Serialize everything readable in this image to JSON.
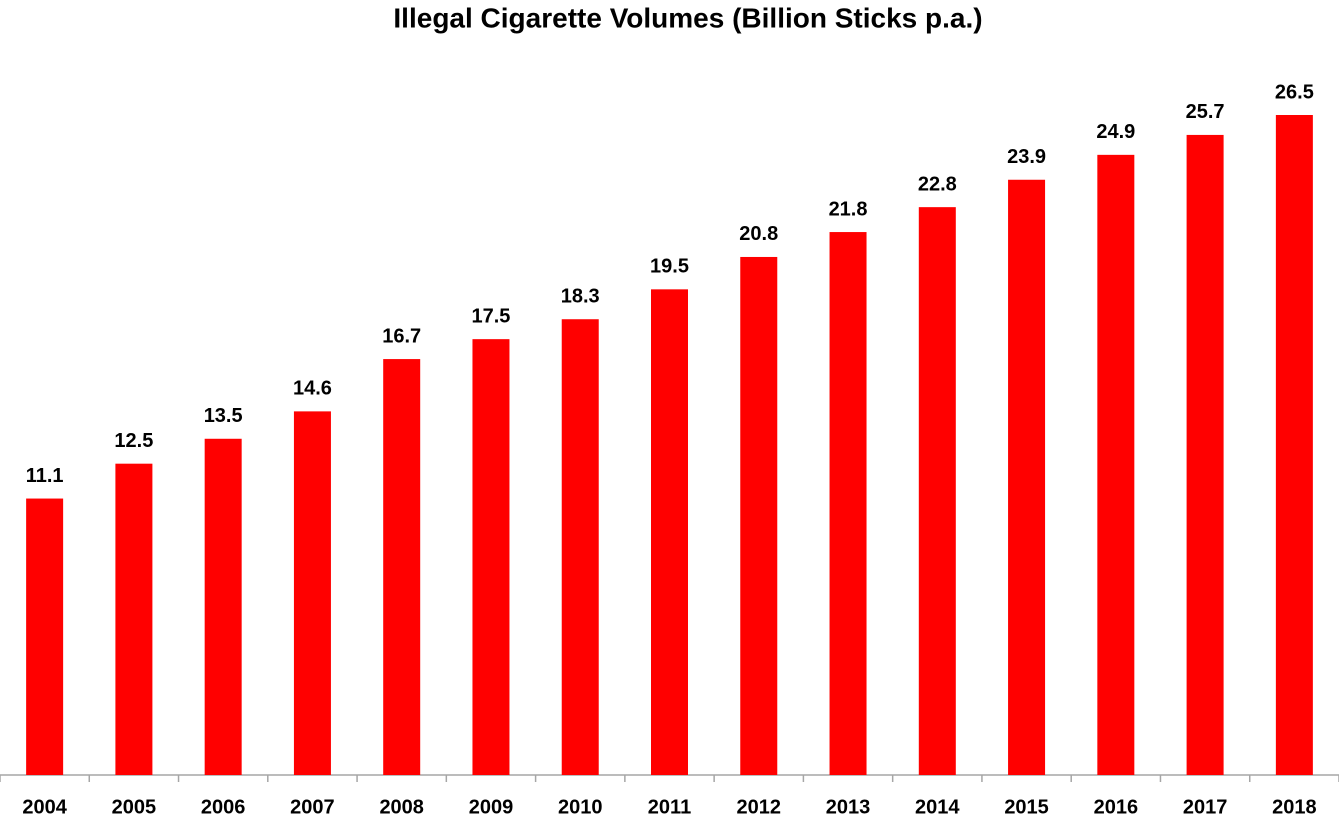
{
  "chart_data": {
    "type": "bar",
    "title": "Illegal Cigarette Volumes (Billion Sticks p.a.)",
    "categories": [
      "2004",
      "2005",
      "2006",
      "2007",
      "2008",
      "2009",
      "2010",
      "2011",
      "2012",
      "2013",
      "2014",
      "2015",
      "2016",
      "2017",
      "2018"
    ],
    "values": [
      11.1,
      12.5,
      13.5,
      14.6,
      16.7,
      17.5,
      18.3,
      19.5,
      20.8,
      21.8,
      22.8,
      23.9,
      24.9,
      25.7,
      26.5
    ],
    "color": "#ff0000",
    "grid": false
  }
}
